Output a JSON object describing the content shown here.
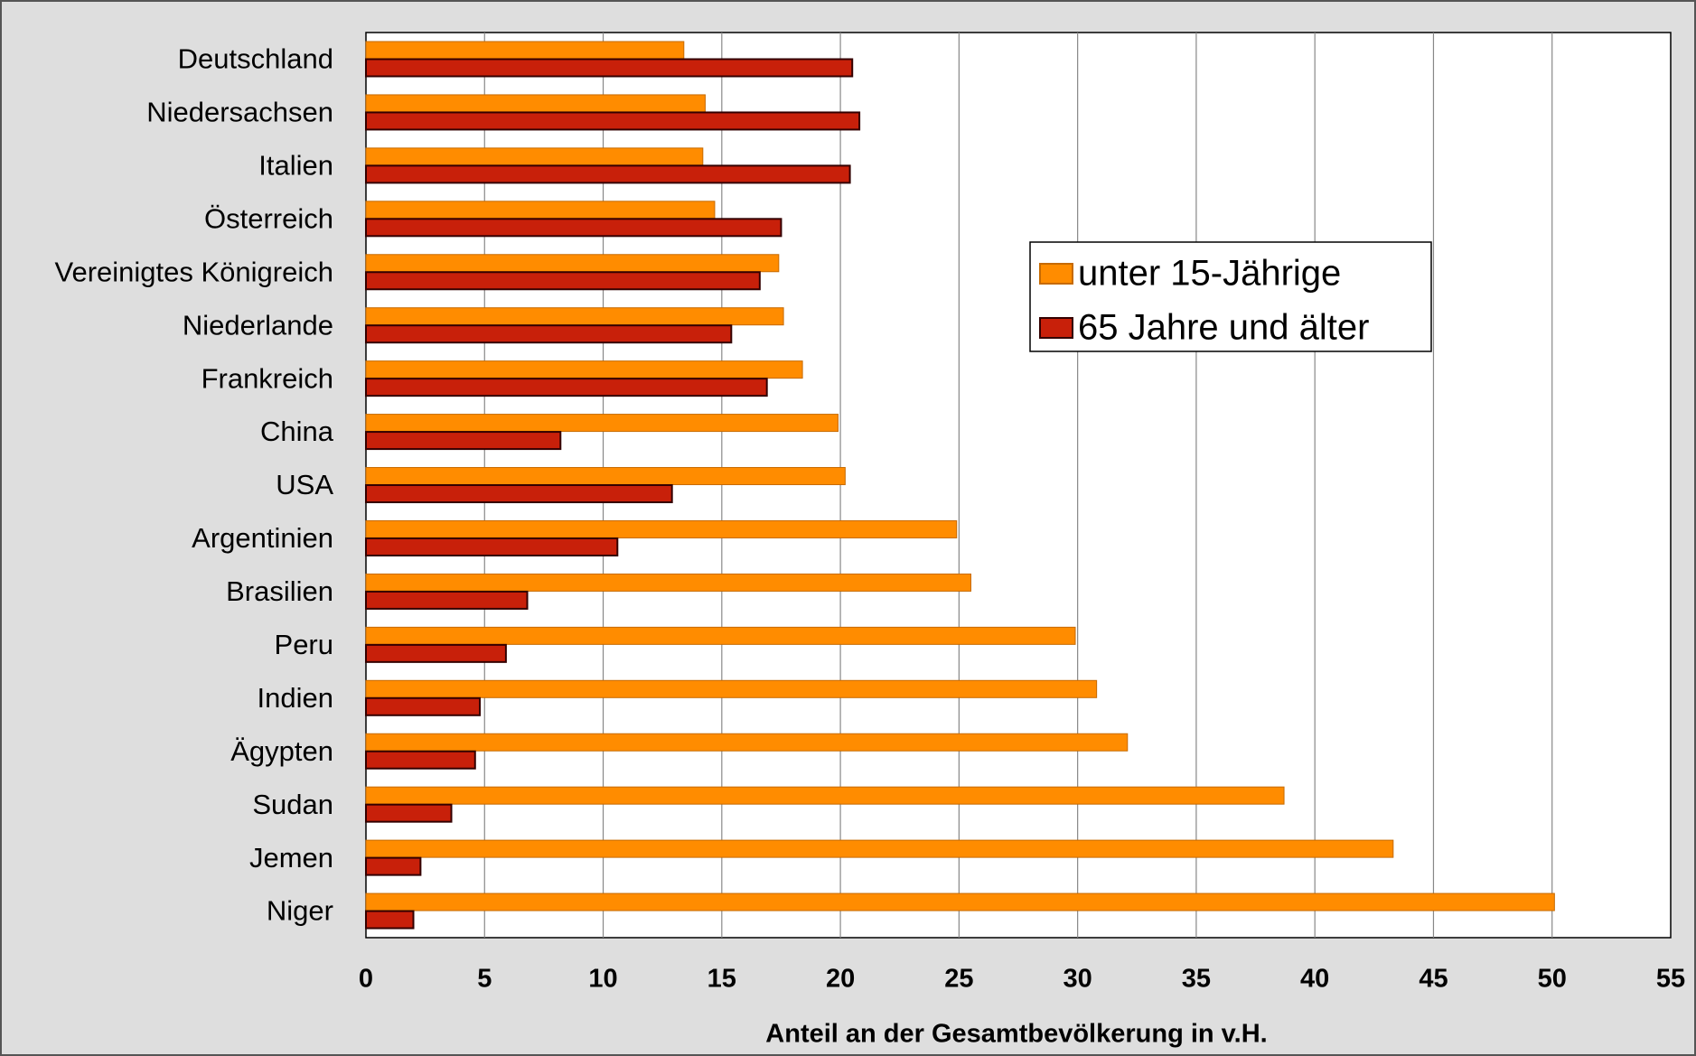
{
  "chart_data": {
    "type": "hbar",
    "xlabel": "Anteil an der Gesamtbevölkerung in v.H.",
    "categories": [
      "Deutschland",
      "Niedersachsen",
      "Italien",
      "Österreich",
      "Vereinigtes Königreich",
      "Niederlande",
      "Frankreich",
      "China",
      "USA",
      "Argentinien",
      "Brasilien",
      "Peru",
      "Indien",
      "Ägypten",
      "Sudan",
      "Jemen",
      "Niger"
    ],
    "series": [
      {
        "name": "unter 15-Jährige",
        "color": "#ff8c00",
        "values": [
          13.4,
          14.3,
          14.2,
          14.7,
          17.4,
          17.6,
          18.4,
          19.9,
          20.2,
          24.9,
          25.5,
          29.9,
          30.8,
          32.1,
          38.7,
          43.3,
          50.1
        ]
      },
      {
        "name": "65 Jahre und älter",
        "color": "#c8200a",
        "values": [
          20.5,
          20.8,
          20.4,
          17.5,
          16.6,
          15.4,
          16.9,
          8.2,
          12.9,
          10.6,
          6.8,
          5.9,
          4.8,
          4.6,
          3.6,
          2.3,
          2.0
        ]
      }
    ],
    "xlim": [
      0,
      55
    ],
    "xticks": [
      0,
      5,
      10,
      15,
      20,
      25,
      30,
      35,
      40,
      45,
      50,
      55
    ],
    "grid": true
  }
}
